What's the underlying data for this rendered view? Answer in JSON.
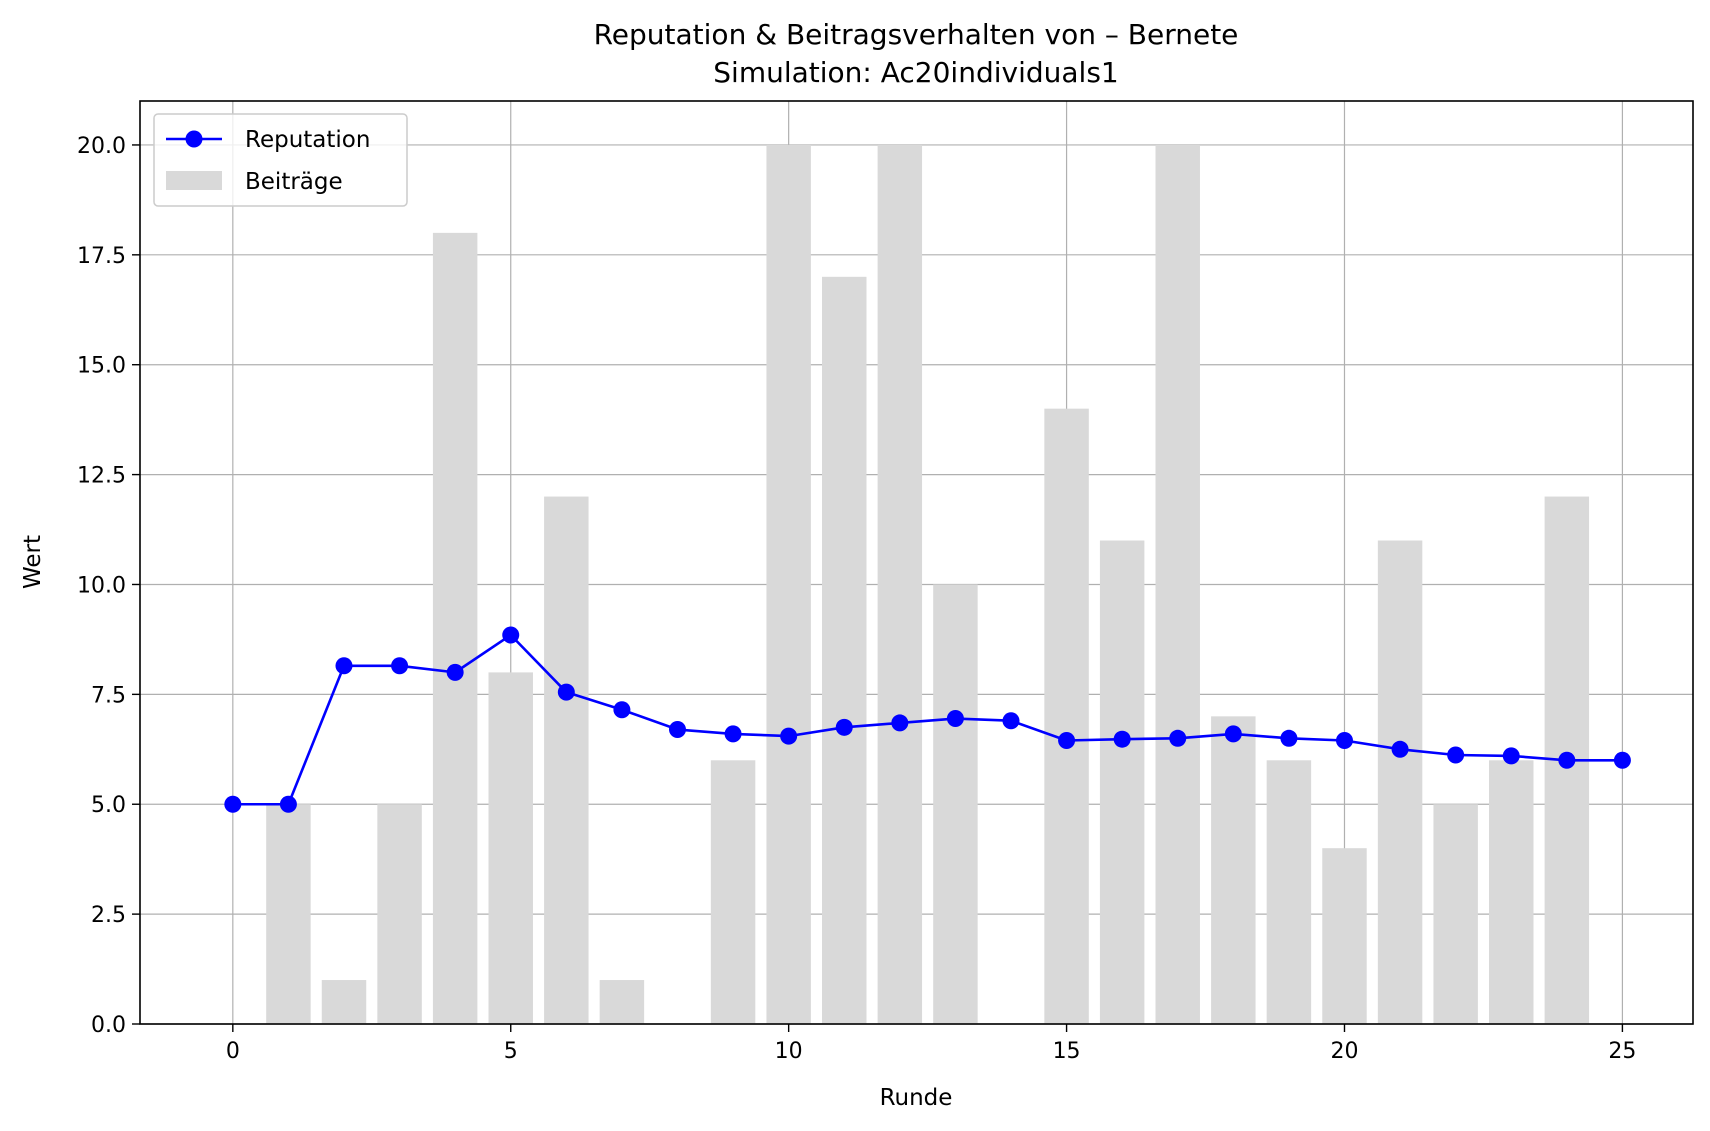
{
  "chart_data": {
    "type": "bar",
    "title": "Reputation & Beitragsverhalten von – Bernete",
    "subtitle": "Simulation: Ac20individuals1",
    "xlabel": "Runde",
    "ylabel": "Wert",
    "xlim": [
      -1.67,
      26.27
    ],
    "ylim": [
      0,
      21
    ],
    "xticks": [
      "0",
      "5",
      "10",
      "15",
      "20",
      "25"
    ],
    "yticks": [
      "0.0",
      "2.5",
      "5.0",
      "7.5",
      "10.0",
      "12.5",
      "15.0",
      "17.5",
      "20.0"
    ],
    "grid": true,
    "legend_position": "top-left",
    "series": [
      {
        "name": "Reputation",
        "kind": "line",
        "color": "#0000ff",
        "marker": "circle",
        "x": [
          0,
          1,
          2,
          3,
          4,
          5,
          6,
          7,
          8,
          9,
          10,
          11,
          12,
          13,
          14,
          15,
          16,
          17,
          18,
          19,
          20,
          21,
          22,
          23,
          24,
          25
        ],
        "values": [
          5.0,
          5.0,
          8.15,
          8.15,
          8.0,
          8.85,
          7.55,
          7.15,
          6.7,
          6.6,
          6.55,
          6.75,
          6.85,
          6.95,
          6.9,
          6.45,
          6.48,
          6.5,
          6.6,
          6.5,
          6.45,
          6.25,
          6.12,
          6.1,
          6.0,
          6.0
        ]
      },
      {
        "name": "Beiträge",
        "kind": "bar",
        "color": "#d9d9d9",
        "x": [
          1,
          2,
          3,
          4,
          5,
          6,
          7,
          9,
          10,
          11,
          12,
          13,
          15,
          16,
          17,
          18,
          19,
          20,
          21,
          22,
          23,
          24
        ],
        "values": [
          5,
          1,
          5,
          18,
          8,
          12,
          1,
          6,
          20,
          17,
          20,
          10,
          14,
          11,
          20,
          7,
          6,
          4,
          11,
          5,
          6,
          12
        ]
      }
    ]
  }
}
